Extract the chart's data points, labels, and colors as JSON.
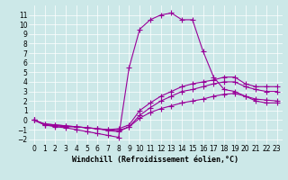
{
  "background_color": "#cce8e8",
  "line_color": "#990099",
  "marker": "+",
  "markersize": 4,
  "linewidth": 0.8,
  "xlabel": "Windchill (Refroidissement éolien,°C)",
  "xlabel_fontsize": 6,
  "ytick_fontsize": 5.5,
  "xtick_fontsize": 5.5,
  "ylim": [
    -2.5,
    12
  ],
  "xlim": [
    -0.5,
    23.5
  ],
  "yticks": [
    -2,
    -1,
    0,
    1,
    2,
    3,
    4,
    5,
    6,
    7,
    8,
    9,
    10,
    11
  ],
  "xticks": [
    0,
    1,
    2,
    3,
    4,
    5,
    6,
    7,
    8,
    9,
    10,
    11,
    12,
    13,
    14,
    15,
    16,
    17,
    18,
    19,
    20,
    21,
    22,
    23
  ],
  "series": [
    {
      "x": [
        0,
        1,
        2,
        3,
        4,
        5,
        6,
        7,
        8,
        9,
        10,
        11,
        12,
        13,
        14,
        15,
        16,
        17,
        18,
        19,
        20,
        21,
        22,
        23
      ],
      "y": [
        0,
        -0.5,
        -0.7,
        -0.8,
        -1.0,
        -1.2,
        -1.4,
        -1.6,
        -1.8,
        5.5,
        9.5,
        10.5,
        11.0,
        11.2,
        10.5,
        10.5,
        7.2,
        4.5,
        3.2,
        3.0,
        2.5,
        2.2,
        2.1,
        2.0
      ]
    },
    {
      "x": [
        0,
        1,
        2,
        3,
        4,
        5,
        6,
        7,
        8,
        9,
        10,
        11,
        12,
        13,
        14,
        15,
        16,
        17,
        18,
        19,
        20,
        21,
        22,
        23
      ],
      "y": [
        0,
        -0.4,
        -0.5,
        -0.6,
        -0.7,
        -0.8,
        -0.9,
        -1.0,
        -0.9,
        -0.5,
        1.0,
        1.8,
        2.5,
        3.0,
        3.5,
        3.8,
        4.0,
        4.2,
        4.5,
        4.5,
        3.8,
        3.5,
        3.5,
        3.5
      ]
    },
    {
      "x": [
        0,
        1,
        2,
        3,
        4,
        5,
        6,
        7,
        8,
        9,
        10,
        11,
        12,
        13,
        14,
        15,
        16,
        17,
        18,
        19,
        20,
        21,
        22,
        23
      ],
      "y": [
        0,
        -0.4,
        -0.5,
        -0.6,
        -0.7,
        -0.8,
        -0.9,
        -1.1,
        -1.2,
        -0.7,
        0.5,
        1.3,
        2.0,
        2.5,
        3.0,
        3.2,
        3.5,
        3.8,
        4.0,
        4.0,
        3.5,
        3.2,
        3.0,
        3.0
      ]
    },
    {
      "x": [
        0,
        1,
        2,
        3,
        4,
        5,
        6,
        7,
        8,
        9,
        10,
        11,
        12,
        13,
        14,
        15,
        16,
        17,
        18,
        19,
        20,
        21,
        22,
        23
      ],
      "y": [
        0,
        -0.5,
        -0.6,
        -0.7,
        -0.7,
        -0.8,
        -0.9,
        -1.0,
        -1.1,
        -0.7,
        0.2,
        0.8,
        1.2,
        1.5,
        1.8,
        2.0,
        2.2,
        2.5,
        2.7,
        2.8,
        2.5,
        2.0,
        1.8,
        1.8
      ]
    }
  ]
}
